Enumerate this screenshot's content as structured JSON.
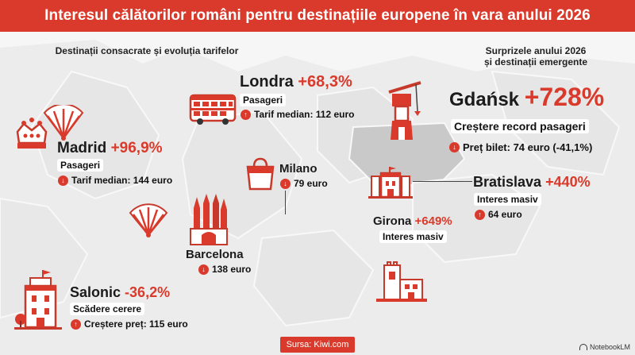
{
  "header": {
    "title": "Interesul călătorilor români pentru destinațiile europene în vara anului 2026"
  },
  "sections": {
    "left": "Destinații consacrate și evoluția tarifelor",
    "right_line1": "Surprizele anului 2026",
    "right_line2": "și destinații emergente"
  },
  "cities": {
    "londra": {
      "name": "Londra",
      "pct": "+68,3%",
      "label": "Pasageri",
      "detail": "Tarif median: 112 euro"
    },
    "madrid": {
      "name": "Madrid",
      "pct": "+96,9%",
      "label": "Pasageri",
      "detail": "Tarif median: 144 euro"
    },
    "milano": {
      "name": "Milano",
      "detail": "79 euro"
    },
    "barcelona": {
      "name": "Barcelona",
      "detail": "138 euro"
    },
    "salonic": {
      "name": "Salonic",
      "pct": "-36,2%",
      "label": "Scădere cerere",
      "detail": "Creștere preț: 115 euro"
    },
    "gdansk": {
      "name": "Gdańsk",
      "pct": "+728%",
      "label": "Creștere record pasageri",
      "detail": "Preț bilet: 74 euro (-41,1%)"
    },
    "bratislava": {
      "name": "Bratislava",
      "pct": "+440%",
      "label": "Interes masiv",
      "detail": "64 euro"
    },
    "girona": {
      "name": "Girona",
      "pct": "+649%",
      "label": "Interes masiv"
    }
  },
  "footer": {
    "source": "Sursa: Kiwi.com",
    "brand": "NotebookLM"
  },
  "colors": {
    "accent": "#d93a2b",
    "map_land": "#ececec",
    "map_highlight": "#c9c9c9"
  },
  "icons": [
    "crown-icon",
    "fan-icon",
    "bus-icon",
    "shopping-bag-icon",
    "sagrada-familia-icon",
    "white-tower-icon",
    "crane-icon",
    "castle-icon",
    "tower-icon",
    "arrow-up-icon",
    "arrow-down-icon"
  ]
}
